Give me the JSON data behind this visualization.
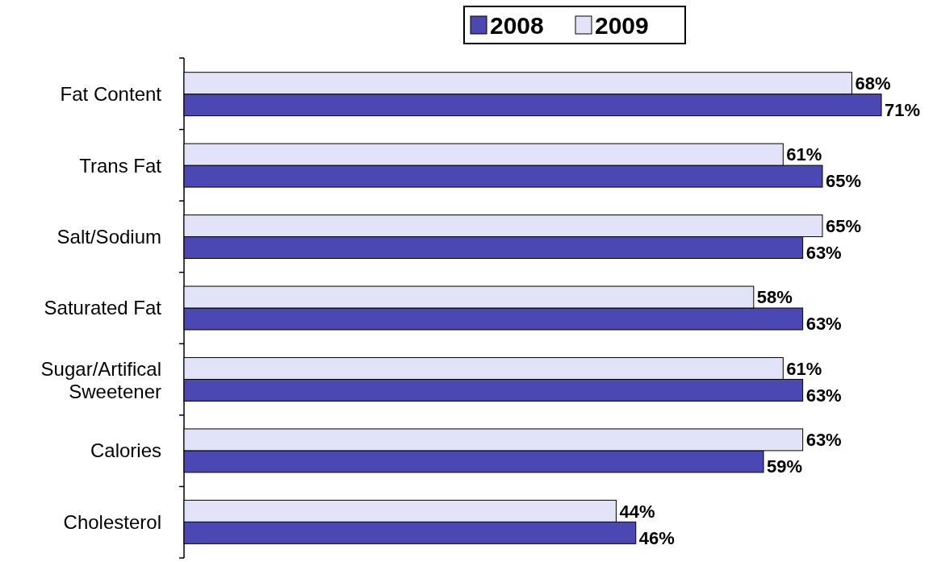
{
  "chart_data": {
    "type": "bar",
    "orientation": "horizontal",
    "categories": [
      "Fat Content",
      "Trans Fat",
      "Salt/Sodium",
      "Saturated Fat",
      "Sugar/Artifical Sweetener",
      "Calories",
      "Cholesterol"
    ],
    "series": [
      {
        "name": "2008",
        "color": "#4b47b3",
        "values": [
          71,
          65,
          63,
          63,
          63,
          59,
          46
        ],
        "value_labels": [
          "71%",
          "65%",
          "63%",
          "63%",
          "63%",
          "59%",
          "46%"
        ]
      },
      {
        "name": "2009",
        "color": "#e2e2f8",
        "values": [
          68,
          61,
          65,
          58,
          61,
          63,
          44
        ],
        "value_labels": [
          "68%",
          "61%",
          "65%",
          "58%",
          "61%",
          "63%",
          "44%"
        ]
      }
    ],
    "legend": "top"
  }
}
